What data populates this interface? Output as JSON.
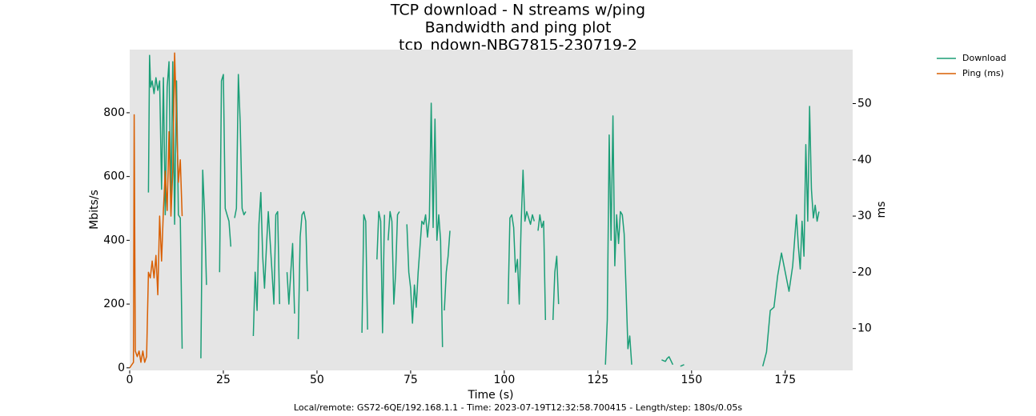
{
  "chart_data": {
    "type": "line",
    "title_lines": [
      "TCP download - N streams w/ping",
      "Bandwidth and ping plot",
      "tcp_ndown-NBG7815-230719-2"
    ],
    "x_label": "Time (s)",
    "y_label": "Mbits/s",
    "y2_label": "ms",
    "footer": "Local/remote: GS72-6QE/192.168.1.1 - Time: 2023-07-19T12:32:58.700415 - Length/step: 180s/0.05s",
    "xlim": [
      0,
      193
    ],
    "xticks": [
      0,
      25,
      50,
      75,
      100,
      125,
      150,
      175
    ],
    "ylim": [
      -8,
      998
    ],
    "yticks": [
      0,
      200,
      400,
      600,
      800
    ],
    "y2lim": [
      2.56,
      59.6
    ],
    "y2ticks": [
      10,
      20,
      30,
      40,
      50
    ],
    "legend_position": "outside-top-right",
    "series": [
      {
        "name": "Download",
        "color": "#1b9e77",
        "x": [
          5,
          5.3,
          5.6,
          6,
          6.5,
          7,
          7.5,
          8,
          8.5,
          9,
          9.5,
          10,
          10.5,
          11,
          11.5,
          12,
          12.5,
          13,
          13.5,
          14,
          16,
          19,
          19.5,
          20,
          20.5,
          22,
          24,
          24.5,
          25,
          25.5,
          26,
          26.5,
          27,
          27.5,
          28,
          28.5,
          29,
          29.5,
          30,
          30.5,
          31,
          32,
          33,
          33.5,
          34,
          34.5,
          35,
          35.5,
          36,
          36.5,
          37,
          38,
          38.5,
          39,
          39.5,
          40,
          41,
          42,
          42.5,
          43,
          43.5,
          44,
          44.5,
          45,
          45.5,
          46,
          46.5,
          47,
          47.5,
          50,
          62,
          62.5,
          63,
          63.5,
          65,
          66,
          66.5,
          67,
          67.5,
          68,
          68.5,
          69,
          69.5,
          70,
          70.5,
          71,
          71.5,
          72,
          73,
          74,
          74.5,
          75,
          75.5,
          76,
          76.5,
          77,
          78,
          78.5,
          79,
          79.5,
          80,
          80.5,
          81,
          81.5,
          82,
          82.5,
          83,
          83.5,
          83.8,
          84,
          84.5,
          85,
          85.5,
          90,
          101,
          101.5,
          102,
          102.5,
          103,
          103.5,
          104,
          104.5,
          105,
          105.5,
          106,
          106.5,
          107,
          107.5,
          108,
          108.5,
          109,
          109.5,
          110,
          110.5,
          111,
          112,
          113,
          113.5,
          114,
          114.5,
          120,
          127,
          127.5,
          128,
          128.5,
          129,
          129.5,
          130,
          130.5,
          131,
          131.5,
          132,
          132.5,
          133,
          133.5,
          134,
          138,
          142,
          143,
          143.5,
          144,
          145,
          146,
          147,
          148,
          160,
          169,
          170,
          171,
          172,
          173,
          174,
          175,
          176,
          177,
          178,
          178.5,
          179,
          179.5,
          180,
          180.5,
          181,
          181.5,
          182,
          182.5,
          183,
          183.5,
          184
        ],
        "values": [
          550,
          980,
          880,
          900,
          860,
          910,
          870,
          900,
          560,
          910,
          480,
          880,
          960,
          500,
          960,
          450,
          900,
          480,
          470,
          60,
          null,
          30,
          620,
          480,
          260,
          null,
          300,
          900,
          920,
          500,
          480,
          460,
          380,
          null,
          470,
          500,
          920,
          770,
          500,
          480,
          490,
          null,
          100,
          300,
          180,
          450,
          550,
          350,
          250,
          380,
          490,
          300,
          200,
          480,
          490,
          200,
          null,
          300,
          200,
          300,
          390,
          170,
          null,
          90,
          410,
          480,
          490,
          460,
          240,
          null,
          110,
          480,
          460,
          120,
          null,
          340,
          490,
          460,
          110,
          480,
          null,
          400,
          490,
          460,
          200,
          300,
          480,
          490,
          null,
          450,
          300,
          250,
          140,
          260,
          190,
          300,
          460,
          450,
          480,
          410,
          470,
          830,
          440,
          780,
          400,
          480,
          400,
          65,
          null,
          180,
          300,
          350,
          430,
          null,
          200,
          470,
          480,
          440,
          300,
          340,
          200,
          450,
          620,
          460,
          490,
          470,
          450,
          480,
          460,
          null,
          430,
          480,
          440,
          460,
          150,
          null,
          150,
          300,
          350,
          200,
          null,
          10,
          150,
          730,
          400,
          790,
          320,
          480,
          390,
          490,
          480,
          420,
          250,
          60,
          100,
          10,
          null,
          25,
          20,
          30,
          35,
          10,
          null,
          5,
          10,
          null,
          5,
          50,
          180,
          190,
          290,
          360,
          300,
          240,
          320,
          480,
          380,
          310,
          460,
          350,
          700,
          460,
          820,
          560,
          470,
          510,
          460,
          490
        ]
      },
      {
        "name": "Ping (ms)",
        "color": "#d95f02",
        "axis": "y2",
        "x": [
          0,
          0.5,
          1,
          1.2,
          1.5,
          2,
          2.5,
          3,
          3.5,
          4,
          4.5,
          5,
          5.5,
          6,
          6.5,
          7,
          7.5,
          8,
          8.5,
          9,
          9.5,
          10,
          10.5,
          11,
          11.5,
          12,
          12.5,
          13,
          13.5,
          14
        ],
        "values": [
          3,
          3.5,
          4,
          48,
          6,
          5,
          6,
          4,
          6,
          4,
          5,
          20,
          19,
          22,
          19,
          23,
          16,
          30,
          22,
          31,
          38,
          31,
          45,
          30,
          38,
          59,
          47,
          36,
          40,
          30
        ]
      }
    ]
  }
}
